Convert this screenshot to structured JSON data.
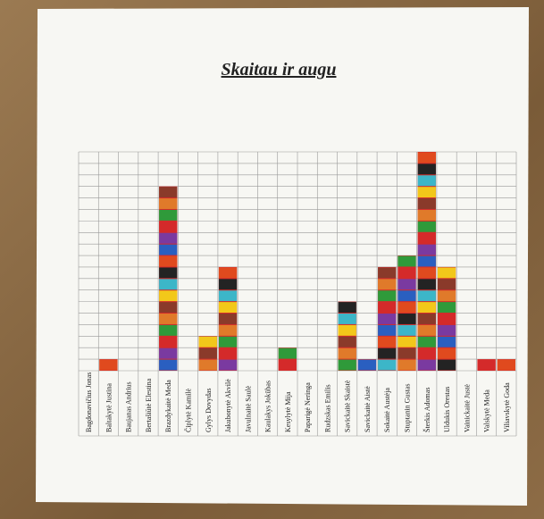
{
  "chart_data": {
    "type": "bar",
    "title": "Skaitau ir augu",
    "categories": [
      "Bagdonavičius Jonas",
      "Baltakytė Justina",
      "Baujanas Andrius",
      "Bertašiūtė Elestina",
      "Brazdykaitė Meda",
      "Čiplytė Kamilė",
      "Gylys Dovydas",
      "Jakubonytė Akvilė",
      "Javulnaitė Saulė",
      "Kaulakys Jokūbas",
      "Kesylytė Mija",
      "Paparigė Neringa",
      "Rudzskas Emilis",
      "Savickaitė Skaistė",
      "Savickaitė Aistė",
      "Sokaitė Austėja",
      "Stuptanin Gustas",
      "Šterkis Adomas",
      "Uldukis Orestas",
      "Vainickaitė Justė",
      "Valskytė Meda",
      "Viliavskytė Goda"
    ],
    "values": [
      0,
      1,
      0,
      0,
      16,
      0,
      3,
      9,
      0,
      0,
      2,
      0,
      0,
      6,
      1,
      9,
      10,
      19,
      9,
      0,
      1,
      1
    ],
    "ylim": [
      0,
      19
    ],
    "cell_colors": [
      "#d42a2a",
      "#e04a1e",
      "#f2c81a",
      "#2f9a3a",
      "#2a5fc0",
      "#3cb6c8",
      "#e07a2a",
      "#7a3aa0",
      "#232323",
      "#8a3a2a"
    ]
  }
}
